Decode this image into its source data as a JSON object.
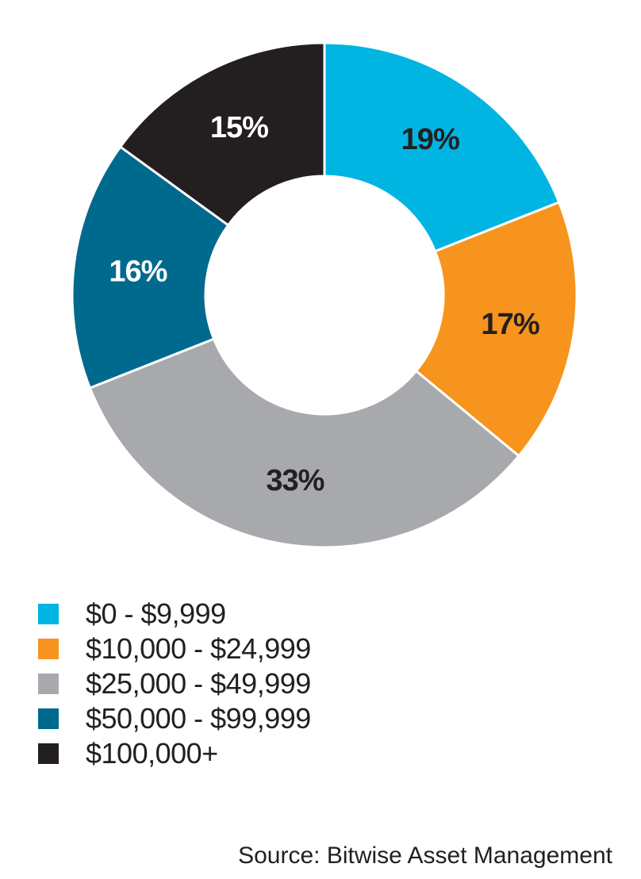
{
  "chart_data": {
    "type": "pie",
    "variant": "donut",
    "title": "",
    "categories": [
      "$0 - $9,999",
      "$10,000 - $24,999",
      "$25,000 - $49,999",
      "$50,000 - $99,999",
      "$100,000+"
    ],
    "values": [
      19,
      17,
      33,
      16,
      15
    ],
    "value_labels": [
      "19%",
      "17%",
      "33%",
      "16%",
      "15%"
    ],
    "colors": [
      "#00b5e2",
      "#f7941d",
      "#a7a9ac",
      "#006a8e",
      "#231f20"
    ],
    "label_colors": [
      "#231f20",
      "#231f20",
      "#231f20",
      "#ffffff",
      "#ffffff"
    ],
    "legend": [
      "$0 - $9,999",
      "$10,000 - $24,999",
      "$25,000 - $49,999",
      "$50,000 - $99,999",
      "$100,000+"
    ],
    "legend_position": "bottom-left"
  },
  "source": "Source: Bitwise Asset Management"
}
